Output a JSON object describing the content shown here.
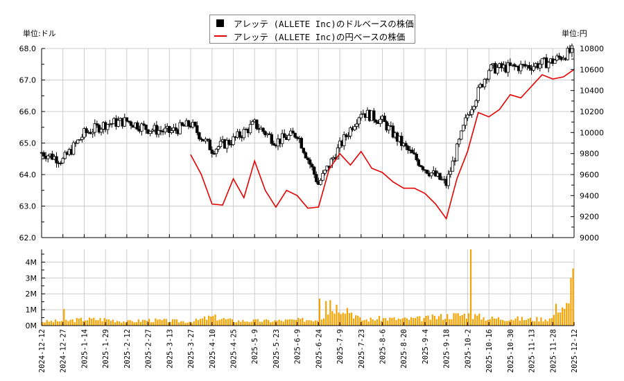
{
  "legend": {
    "usd_label": "アレッテ (ALLETE Inc)のドルベースの株価",
    "jpy_label": "アレッテ (ALLETE Inc)の円ベースの株価"
  },
  "units": {
    "left": "単位:ドル",
    "right": "単位:円"
  },
  "colors": {
    "usd_candle": "#000000",
    "jpy_line": "#e60000",
    "volume": "#f5a300",
    "grid": "#cccccc"
  },
  "chart_data": [
    {
      "type": "candlestick+line",
      "title": "",
      "legend_position": "top-center",
      "grid": true,
      "left_axis": {
        "label": "単位:ドル",
        "ylim": [
          62.0,
          68.0
        ],
        "ticks": [
          "62.0",
          "63.0",
          "64.0",
          "65.0",
          "66.0",
          "67.0",
          "68.0"
        ]
      },
      "right_axis": {
        "label": "単位:円",
        "ylim": [
          9000,
          10800
        ],
        "ticks": [
          "9000",
          "9200",
          "9400",
          "9600",
          "9800",
          "10000",
          "10200",
          "10400",
          "10600",
          "10800"
        ]
      },
      "x_ticks": [
        "2024-12-12",
        "2024-12-27",
        "2025-1-14",
        "2025-1-29",
        "2025-2-12",
        "2025-2-27",
        "2025-3-13",
        "2025-3-27",
        "2025-4-10",
        "2025-4-25",
        "2025-5-9",
        "2025-5-23",
        "2025-6-9",
        "2025-6-24",
        "2025-7-9",
        "2025-7-23",
        "2025-8-6",
        "2025-8-20",
        "2025-9-4",
        "2025-9-18",
        "2025-10-2",
        "2025-10-16",
        "2025-10-30",
        "2025-11-13",
        "2025-11-28",
        "2025-12-12"
      ],
      "series": [
        {
          "name": "アレッテ (ALLETE Inc)のドルベースの株価",
          "axis": "left",
          "x": [
            "2024-12-12",
            "2024-12-27",
            "2025-1-14",
            "2025-1-29",
            "2025-2-12",
            "2025-2-27",
            "2025-3-13",
            "2025-3-27",
            "2025-4-10",
            "2025-4-25",
            "2025-5-9",
            "2025-5-23",
            "2025-6-9",
            "2025-6-24",
            "2025-7-9",
            "2025-7-23",
            "2025-8-6",
            "2025-8-20",
            "2025-9-4",
            "2025-9-18",
            "2025-10-2",
            "2025-10-16",
            "2025-10-30",
            "2025-11-13",
            "2025-11-28",
            "2025-12-12"
          ],
          "values": [
            64.7,
            64.45,
            65.3,
            65.6,
            65.7,
            65.45,
            65.35,
            65.6,
            64.8,
            65.1,
            65.6,
            65.05,
            65.3,
            63.7,
            64.9,
            66.0,
            65.7,
            64.9,
            64.2,
            63.7,
            65.9,
            67.35,
            67.4,
            67.45,
            67.6,
            67.95
          ]
        },
        {
          "name": "アレッテ (ALLETE Inc)の円ベースの株価",
          "axis": "right",
          "x": [
            "2025-3-27",
            "2025-4-3",
            "2025-4-10",
            "2025-4-18",
            "2025-4-25",
            "2025-5-2",
            "2025-5-9",
            "2025-5-16",
            "2025-5-23",
            "2025-6-2",
            "2025-6-9",
            "2025-6-16",
            "2025-6-24",
            "2025-7-2",
            "2025-7-9",
            "2025-7-16",
            "2025-7-23",
            "2025-7-30",
            "2025-8-6",
            "2025-8-13",
            "2025-8-20",
            "2025-8-27",
            "2025-9-4",
            "2025-9-11",
            "2025-9-18",
            "2025-9-25",
            "2025-10-2",
            "2025-10-9",
            "2025-10-16",
            "2025-10-23",
            "2025-10-30",
            "2025-11-6",
            "2025-11-13",
            "2025-11-20",
            "2025-11-28",
            "2025-12-5",
            "2025-12-12"
          ],
          "values": [
            9790,
            9600,
            9320,
            9310,
            9560,
            9380,
            9730,
            9450,
            9290,
            9450,
            9400,
            9280,
            9290,
            9650,
            9800,
            9690,
            9820,
            9660,
            9620,
            9530,
            9470,
            9470,
            9420,
            9320,
            9180,
            9560,
            9820,
            10190,
            10150,
            10220,
            10360,
            10330,
            10440,
            10550,
            10510,
            10530,
            10600
          ]
        }
      ]
    },
    {
      "type": "bar",
      "title": "",
      "ylabel": "",
      "ylim": [
        0,
        4800000
      ],
      "y_ticks": [
        "0M",
        "1M",
        "2M",
        "3M",
        "4M"
      ],
      "categories": [
        "2024-12-12",
        "2024-12-27",
        "2025-1-14",
        "2025-1-29",
        "2025-2-12",
        "2025-2-27",
        "2025-3-13",
        "2025-3-27",
        "2025-4-10",
        "2025-4-25",
        "2025-5-9",
        "2025-5-23",
        "2025-6-9",
        "2025-6-24",
        "2025-7-9",
        "2025-7-23",
        "2025-8-6",
        "2025-8-20",
        "2025-9-4",
        "2025-9-18",
        "2025-10-2",
        "2025-10-16",
        "2025-10-30",
        "2025-11-13",
        "2025-11-28",
        "2025-12-12"
      ],
      "values": [
        250000,
        300000,
        400000,
        400000,
        250000,
        350000,
        300000,
        250000,
        550000,
        300000,
        300000,
        300000,
        350000,
        400000,
        1500000,
        350000,
        450000,
        400000,
        450000,
        600000,
        700000,
        450000,
        450000,
        400000,
        450000,
        3600000
      ],
      "notable": {
        "2024-12-19": 1050000,
        "2025-1-16": 880000,
        "2025-7-14": 1700000,
        "2025-10-6": 4800000,
        "2025-12-11": 3000000,
        "2025-12-12": 3600000
      }
    }
  ]
}
